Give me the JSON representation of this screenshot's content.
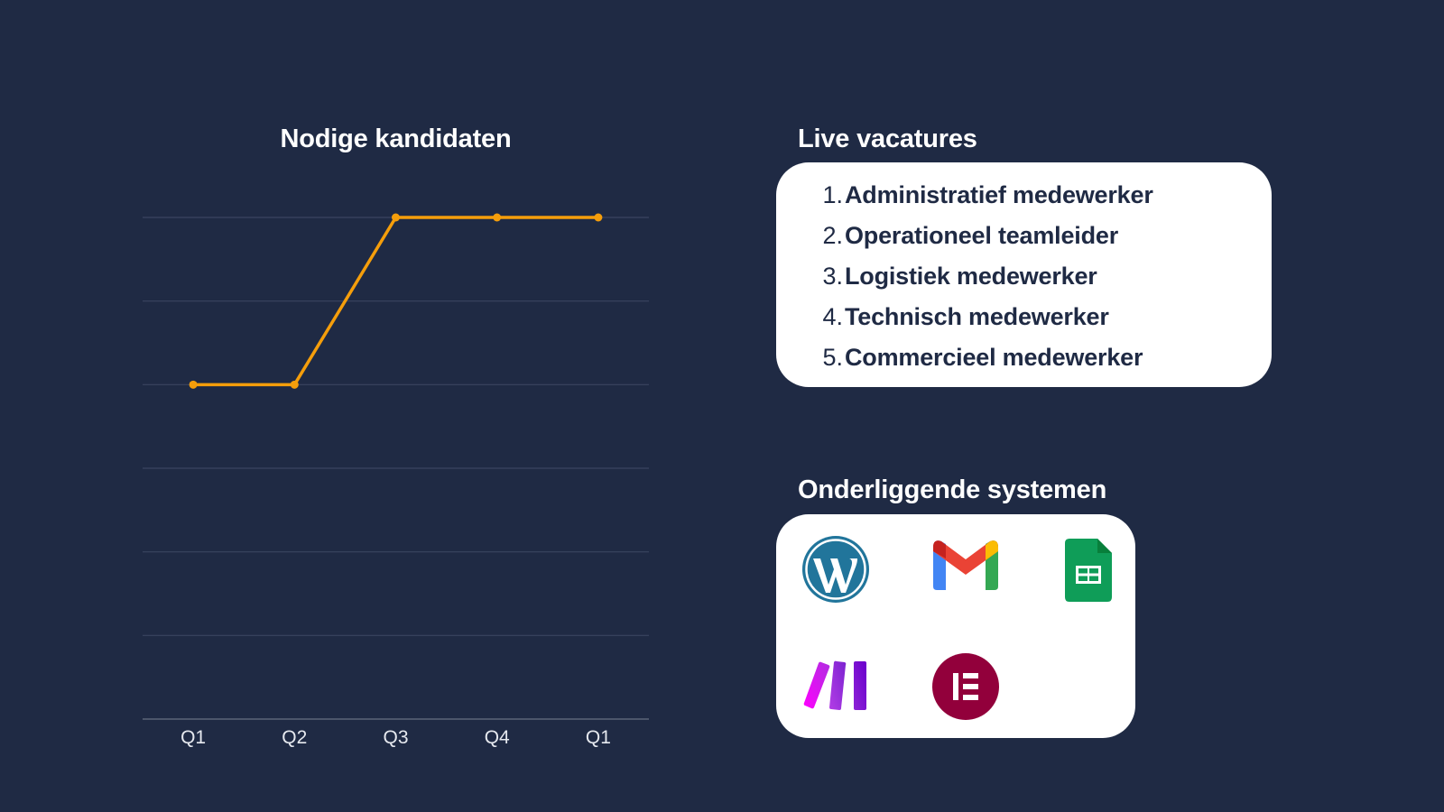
{
  "chart_data": {
    "type": "line",
    "title": "Nodige kandidaten",
    "categories": [
      "Q1",
      "Q2",
      "Q3",
      "Q4",
      "Q1"
    ],
    "series": [
      {
        "name": "Nodige kandidaten",
        "values": [
          4,
          4,
          6,
          6,
          6
        ],
        "color": "#f59e0b"
      }
    ],
    "xlabel": "",
    "ylabel": "",
    "ylim": [
      0,
      6
    ],
    "ytick_step": 1,
    "y_tick_labels_visible": false,
    "grid": true,
    "legend": "none"
  },
  "vacatures": {
    "title": "Live vacatures",
    "items": [
      {
        "number": "1.",
        "label": "Administratief medewerker"
      },
      {
        "number": "2.",
        "label": "Operationeel teamleider"
      },
      {
        "number": "3.",
        "label": "Logistiek medewerker"
      },
      {
        "number": "4.",
        "label": "Technisch medewerker"
      },
      {
        "number": "5.",
        "label": "Commercieel medewerker"
      }
    ]
  },
  "systems": {
    "title": "Onderliggende systemen",
    "icons": [
      "wordpress-icon",
      "gmail-icon",
      "google-sheets-icon",
      "make-icon",
      "elementor-icon"
    ]
  },
  "colors": {
    "background": "#1f2a44",
    "line": "#f59e0b",
    "grid": "#3a4560",
    "axis": "#5b6478",
    "card": "#ffffff",
    "card_text": "#1f2a44"
  }
}
